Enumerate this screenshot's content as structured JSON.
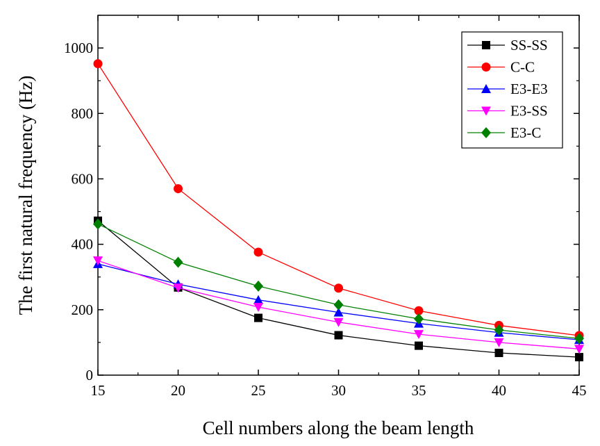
{
  "chart_data": {
    "type": "line",
    "title": "",
    "xlabel": "Cell numbers along the beam length",
    "ylabel": "The first natural frequency (Hz)",
    "x": [
      15,
      20,
      25,
      30,
      35,
      40,
      45
    ],
    "xlim": [
      15,
      45
    ],
    "ylim": [
      0,
      1100
    ],
    "xticks": [
      "15",
      "20",
      "25",
      "30",
      "35",
      "40",
      "45"
    ],
    "yticks": [
      "0",
      "200",
      "400",
      "600",
      "800",
      "1000"
    ],
    "grid": false,
    "legend_position": "top-right",
    "series": [
      {
        "name": "SS-SS",
        "color": "#000000",
        "marker": "square",
        "values": [
          472,
          268,
          175,
          122,
          90,
          68,
          55
        ]
      },
      {
        "name": "C-C",
        "color": "#ff0000",
        "marker": "circle",
        "values": [
          952,
          570,
          376,
          266,
          197,
          152,
          121
        ]
      },
      {
        "name": "E3-E3",
        "color": "#0000ff",
        "marker": "triangle-up",
        "values": [
          340,
          278,
          230,
          192,
          158,
          130,
          108
        ]
      },
      {
        "name": "E3-SS",
        "color": "#ff00ff",
        "marker": "triangle-down",
        "values": [
          350,
          267,
          208,
          162,
          125,
          100,
          80
        ]
      },
      {
        "name": "E3-C",
        "color": "#008000",
        "marker": "diamond",
        "values": [
          462,
          345,
          272,
          215,
          172,
          138,
          112
        ]
      }
    ]
  }
}
